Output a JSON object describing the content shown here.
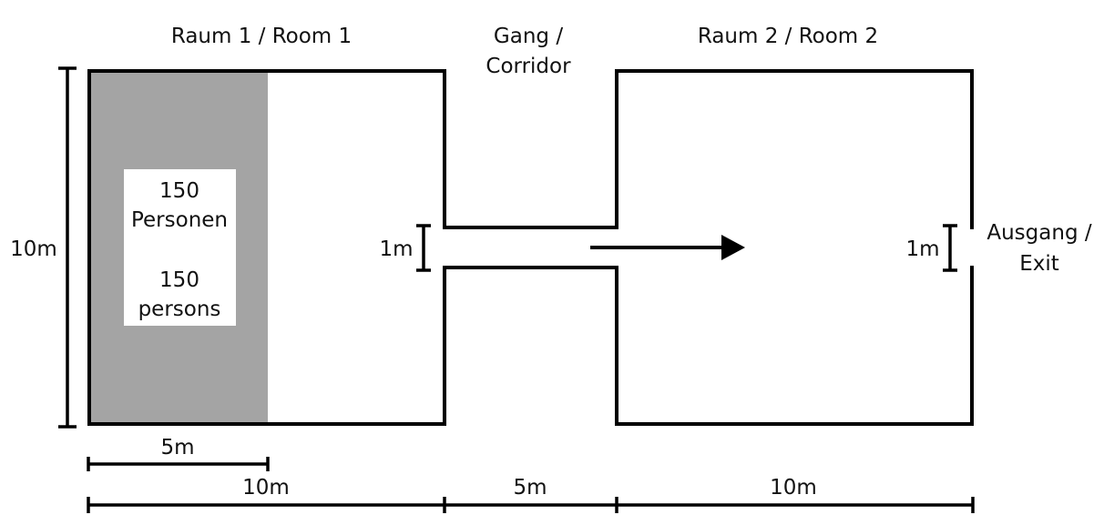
{
  "rooms": {
    "room1_title": "Raum 1 / Room 1",
    "corridor_title_line1": "Gang /",
    "corridor_title_line2": "Corridor",
    "room2_title": "Raum 2 / Room 2"
  },
  "crowd": {
    "count_de": "150",
    "label_de": "Personen",
    "count_en": "150",
    "label_en": "persons",
    "fill_color": "#a4a4a4"
  },
  "exit": {
    "line1": "Ausgang /",
    "line2": "Exit"
  },
  "dimensions": {
    "room_height": "10m",
    "crowd_width": "5m",
    "room1_length": "10m",
    "corridor_length": "5m",
    "room2_length": "10m",
    "door1_width": "1m",
    "exit_width": "1m"
  },
  "icons": {
    "flow_arrow": "arrow-right-icon"
  }
}
